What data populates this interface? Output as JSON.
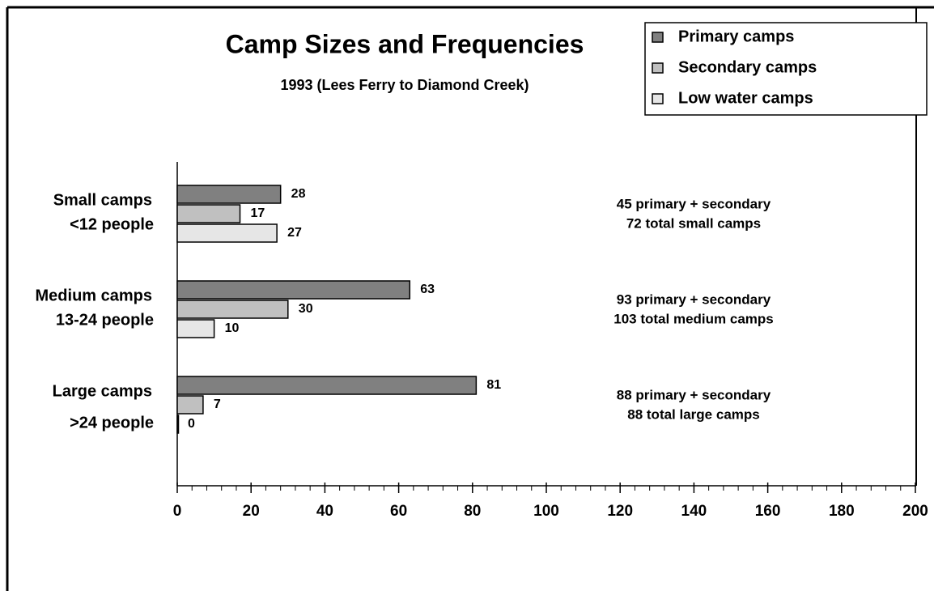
{
  "chart_data": {
    "type": "barh",
    "title": "Camp Sizes and Frequencies",
    "subtitle": "1993 (Lees Ferry to Diamond Creek)",
    "categories": [
      "Small camps",
      "Medium camps",
      "Large camps"
    ],
    "category_notes": [
      "<12 people",
      "13-24 people",
      ">24 people"
    ],
    "series": [
      {
        "name": "Primary camps",
        "color": "#808080",
        "values": [
          28,
          63,
          81
        ]
      },
      {
        "name": "Secondary camps",
        "color": "#c0c0c0",
        "values": [
          17,
          30,
          7
        ]
      },
      {
        "name": "Low water camps",
        "color": "#e6e6e6",
        "values": [
          27,
          10,
          0
        ]
      }
    ],
    "annotations": [
      [
        "45 primary + secondary",
        "72 total small camps"
      ],
      [
        "93 primary + secondary",
        "103 total medium camps"
      ],
      [
        "88 primary + secondary",
        "88 total large camps"
      ]
    ],
    "xlim": [
      0,
      200
    ],
    "xticks": [
      0,
      20,
      40,
      60,
      80,
      100,
      120,
      140,
      160,
      180,
      200
    ],
    "legend": "upper right"
  }
}
